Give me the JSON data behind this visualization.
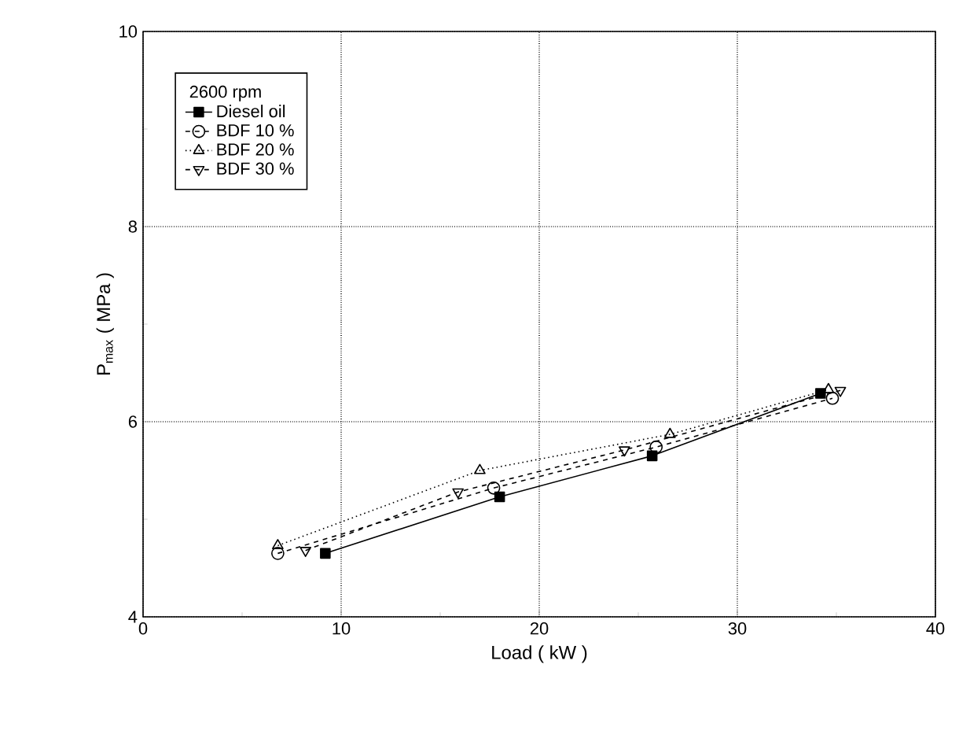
{
  "chart_data": {
    "type": "line",
    "xlabel": "Load ( kW )",
    "ylabel": "P$_{max}$ ( MPa )",
    "legend_title": "2600 rpm",
    "xlim": [
      0,
      40
    ],
    "ylim": [
      4,
      10
    ],
    "xticks": [
      0,
      10,
      20,
      30,
      40
    ],
    "yticks": [
      4,
      6,
      8,
      10
    ],
    "grid": true,
    "legend": "top left",
    "series": [
      {
        "name": "Diesel oil",
        "color": "#000000",
        "marker": "square",
        "line_style": "solid",
        "x": [
          9.2,
          18.0,
          25.7,
          34.2
        ],
        "values": [
          4.65,
          5.23,
          5.65,
          6.29
        ]
      },
      {
        "name": "BDF 10 %",
        "color": "#000000",
        "marker": "circle",
        "line_style": "dashed",
        "x": [
          6.8,
          17.7,
          25.9,
          34.8
        ],
        "values": [
          4.65,
          5.32,
          5.74,
          6.24
        ]
      },
      {
        "name": "BDF 20 %",
        "color": "#000000",
        "marker": "triangle",
        "line_style": "dotted",
        "x": [
          6.8,
          17.0,
          26.6,
          34.6
        ],
        "values": [
          4.73,
          5.5,
          5.87,
          6.33
        ]
      },
      {
        "name": "BDF 30 %",
        "color": "#000000",
        "marker": "triangle down",
        "line_style": "dashed",
        "x": [
          8.2,
          15.9,
          24.3,
          35.2
        ],
        "values": [
          4.68,
          5.28,
          5.71,
          6.32
        ]
      }
    ]
  }
}
